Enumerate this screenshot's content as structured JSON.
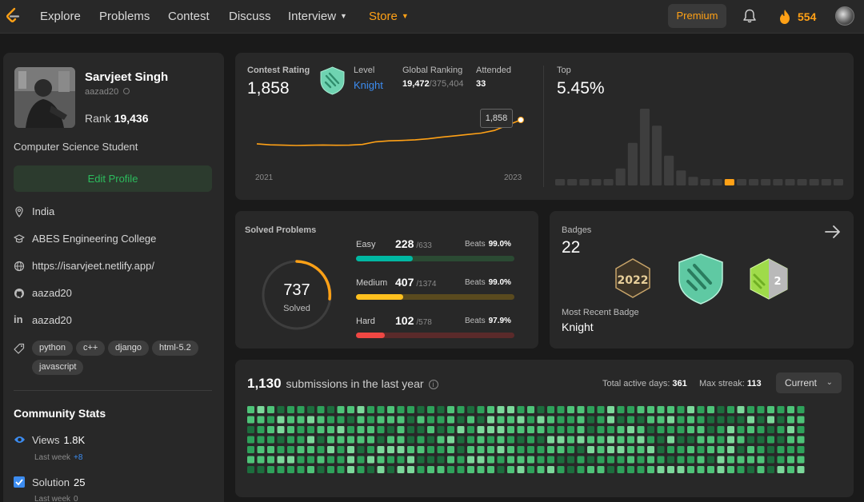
{
  "nav": {
    "items": [
      {
        "label": "Explore"
      },
      {
        "label": "Problems"
      },
      {
        "label": "Contest"
      },
      {
        "label": "Discuss"
      },
      {
        "label": "Interview"
      },
      {
        "label": "Store"
      }
    ],
    "premium_label": "Premium",
    "streak_count": "554",
    "icons": {
      "logo": "leetcode-logo-icon",
      "bell": "bell-icon",
      "streak": "flame-icon",
      "avatar": "avatar"
    }
  },
  "profile": {
    "name": "Sarvjeet Singh",
    "handle": "aazad20",
    "rank_label": "Rank",
    "rank_value": "19,436",
    "bio": "Computer Science Student",
    "edit_label": "Edit Profile",
    "location": "India",
    "school": "ABES Engineering College",
    "website": "https://isarvjeet.netlify.app/",
    "github": "aazad20",
    "linkedin": "aazad20",
    "tags": [
      "python",
      "c++",
      "django",
      "html-5.2",
      "javascript"
    ]
  },
  "community": {
    "title": "Community Stats",
    "views_label": "Views",
    "views_value": "1.8K",
    "views_sub": "Last week",
    "views_delta": "+8",
    "solution_label": "Solution",
    "solution_value": "25",
    "solution_sub": "Last week",
    "solution_delta": "0"
  },
  "contest": {
    "rating_label": "Contest Rating",
    "rating_value": "1,858",
    "level_label": "Level",
    "level_value": "Knight",
    "global_label": "Global Ranking",
    "global_rank": "19,472",
    "global_total": "/375,404",
    "attended_label": "Attended",
    "attended_value": "33",
    "top_label": "Top",
    "top_value": "5.45%",
    "tooltip_value": "1,858",
    "x_start": "2021",
    "x_end": "2023"
  },
  "solved": {
    "title": "Solved Problems",
    "total": "737",
    "total_label": "Solved",
    "beats_label": "Beats",
    "difficulties": [
      {
        "name": "Easy",
        "count": "228",
        "total": "/633",
        "beats": "99.0%",
        "color": "#00b8a3",
        "track": "#2b4a33",
        "fraction": 0.36
      },
      {
        "name": "Medium",
        "count": "407",
        "total": "/1374",
        "beats": "99.0%",
        "color": "#ffc01e",
        "track": "#5a4a1e",
        "fraction": 0.3
      },
      {
        "name": "Hard",
        "count": "102",
        "total": "/578",
        "beats": "97.9%",
        "color": "#ef4743",
        "track": "#5a2a2a",
        "fraction": 0.18
      }
    ]
  },
  "badges": {
    "label": "Badges",
    "count": "22",
    "recent_label": "Most Recent Badge",
    "recent_name": "Knight",
    "icons": [
      "badge-2022-icon",
      "knight-badge-icon",
      "50-days-badge-icon"
    ]
  },
  "submissions": {
    "count": "1,130",
    "title_suffix": "submissions in the last year",
    "active_label": "Total active days:",
    "active_value": "361",
    "streak_label": "Max streak:",
    "streak_value": "113",
    "range_label": "Current"
  },
  "chart_data": {
    "type": "line",
    "x_labels": [
      "2021",
      "2023"
    ],
    "y_points": [
      1500,
      1485,
      1480,
      1475,
      1478,
      1482,
      1478,
      1480,
      1490,
      1530,
      1545,
      1550,
      1560,
      1575,
      1600,
      1620,
      1640,
      1660,
      1700,
      1780,
      1858
    ],
    "histogram": {
      "type": "bar",
      "values": [
        2,
        2,
        2,
        2,
        3,
        8,
        20,
        36,
        28,
        14,
        7,
        4,
        3,
        2,
        2,
        2,
        2,
        2,
        2,
        2,
        2,
        2,
        2,
        2
      ],
      "highlight_index": 14,
      "color": "#3e3e3e",
      "highlight_color": "#ffa116"
    }
  }
}
